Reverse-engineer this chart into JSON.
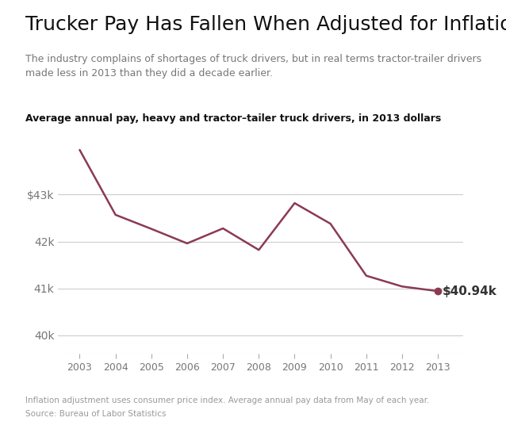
{
  "title": "Trucker Pay Has Fallen When Adjusted for Inflation",
  "subtitle": "The industry complains of shortages of truck drivers, but in real terms tractor-trailer drivers\nmade less in 2013 than they did a decade earlier.",
  "axis_label": "Average annual pay, heavy and tractor–tailer truck drivers, in 2013 dollars",
  "years": [
    2003,
    2004,
    2005,
    2006,
    2007,
    2008,
    2009,
    2010,
    2011,
    2012,
    2013
  ],
  "values": [
    43956,
    42570,
    42270,
    41960,
    42280,
    41820,
    42820,
    42380,
    41270,
    41040,
    40940
  ],
  "line_color": "#8B3A52",
  "bg_color": "#ffffff",
  "grid_color": "#cccccc",
  "text_color": "#333333",
  "annotation_label": "$40.94k",
  "ytick_labels": [
    "40k",
    "41k",
    "42k",
    "$43k"
  ],
  "ytick_values": [
    40000,
    41000,
    42000,
    43000
  ],
  "ylim": [
    39600,
    44500
  ],
  "xlim": [
    2002.4,
    2013.7
  ],
  "footer_note": "Inflation adjustment uses consumer price index. Average annual pay data from May of each year.",
  "source": "Source: Bureau of Labor Statistics",
  "title_fontsize": 18,
  "subtitle_fontsize": 9,
  "axis_label_fontsize": 9,
  "footer_fontsize": 7.5
}
